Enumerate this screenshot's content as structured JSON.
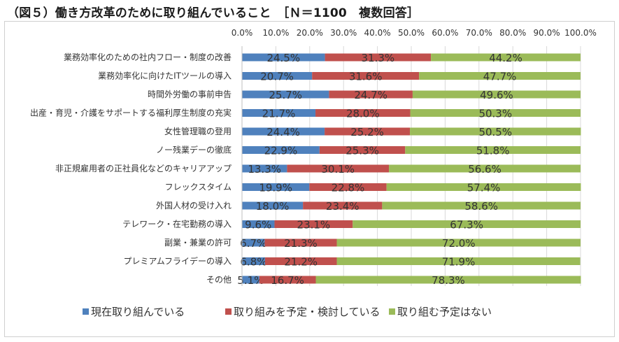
{
  "title": "（図５）働き方改革のために取り組んでいること　［Ｎ＝1100　複数回答］",
  "chart_data": {
    "type": "bar",
    "orientation": "horizontal",
    "stacked": "percent",
    "xlim": [
      0,
      100
    ],
    "xticks": [
      "0.0%",
      "10.0%",
      "20.0%",
      "30.0%",
      "40.0%",
      "50.0%",
      "60.0%",
      "70.0%",
      "80.0%",
      "90.0%",
      "100.0%"
    ],
    "categories": [
      "業務効率化のための社内フロー・制度の改善",
      "業務効率化に向けたITツールの導入",
      "時間外労働の事前申告",
      "出産・育児・介護をサポートする福利厚生制度の充実",
      "女性管理職の登用",
      "ノー残業デーの徹底",
      "非正規雇用者の正社員化などのキャリアアップ",
      "フレックスタイム",
      "外国人材の受け入れ",
      "テレワーク・在宅勤務の導入",
      "副業・兼業の許可",
      "プレミアムフライデーの導入",
      "その他"
    ],
    "series": [
      {
        "name": "現在取り組んでいる",
        "color": "#4f81bd",
        "values": [
          24.5,
          20.7,
          25.7,
          21.7,
          24.4,
          22.9,
          13.3,
          19.9,
          18.0,
          9.6,
          6.7,
          6.8,
          5.1
        ],
        "labels": [
          "24.5%",
          "20.7%",
          "25.7%",
          "21.7%",
          "24.4%",
          "22.9%",
          "13.3%",
          "19.9%",
          "18.0%",
          "9.6%",
          "6.7%",
          "6.8%",
          "5.1%"
        ]
      },
      {
        "name": "取り組みを予定・検討している",
        "color": "#c0504d",
        "values": [
          31.3,
          31.6,
          24.7,
          28.0,
          25.2,
          25.3,
          30.1,
          22.8,
          23.4,
          23.1,
          21.3,
          21.2,
          16.7
        ],
        "labels": [
          "31.3%",
          "31.6%",
          "24.7%",
          "28.0%",
          "25.2%",
          "25.3%",
          "30.1%",
          "22.8%",
          "23.4%",
          "23.1%",
          "21.3%",
          "21.2%",
          "16.7%"
        ]
      },
      {
        "name": "取り組む予定はない",
        "color": "#9bbb59",
        "values": [
          44.2,
          47.7,
          49.6,
          50.3,
          50.5,
          51.8,
          56.6,
          57.4,
          58.6,
          67.3,
          72.0,
          71.9,
          78.3
        ],
        "labels": [
          "44.2%",
          "47.7%",
          "49.6%",
          "50.3%",
          "50.5%",
          "51.8%",
          "56.6%",
          "57.4%",
          "58.6%",
          "67.3%",
          "72.0%",
          "71.9%",
          "78.3%"
        ]
      }
    ],
    "legend_position": "bottom",
    "grid": true
  }
}
